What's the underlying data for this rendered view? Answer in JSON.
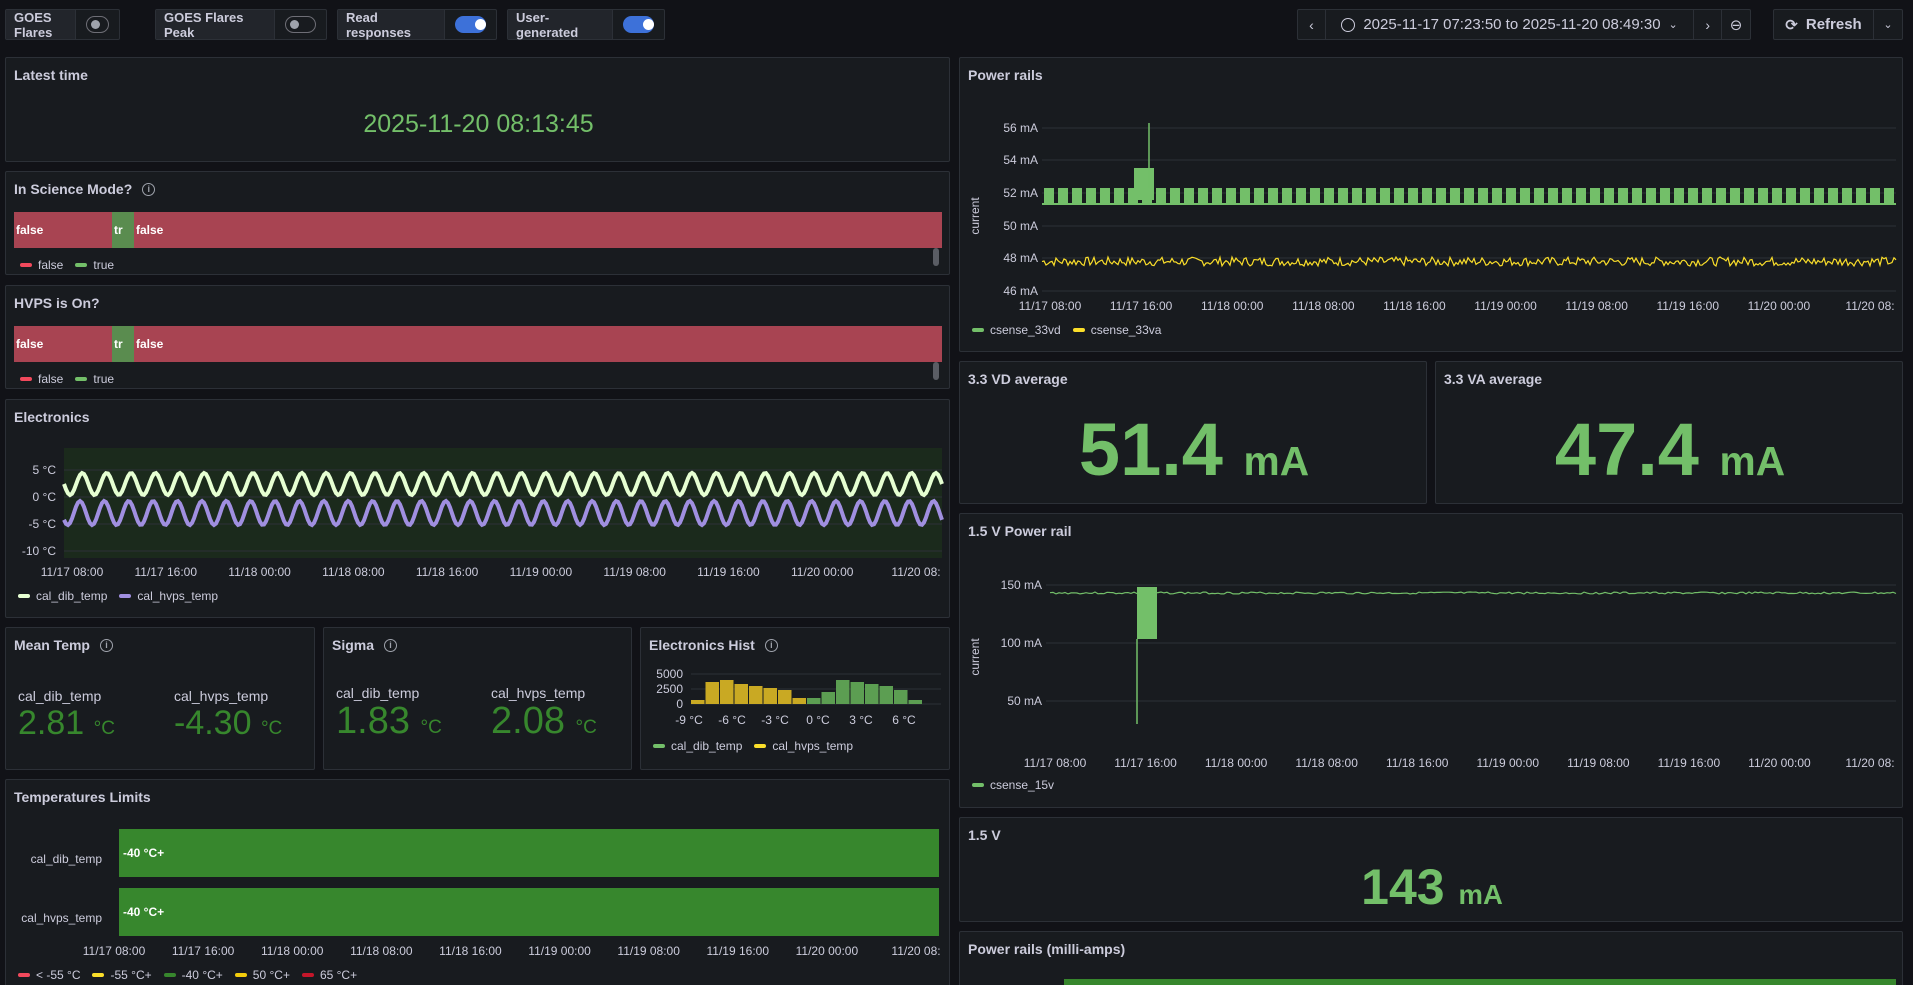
{
  "variables": [
    {
      "label": "GOES Flares",
      "on": false
    },
    {
      "label": "GOES Flares Peak",
      "on": false
    },
    {
      "label": "Read responses",
      "on": true
    },
    {
      "label": "User-generated",
      "on": true
    }
  ],
  "timepicker": {
    "range": "2025-11-17 07:23:50 to 2025-11-20 08:49:30",
    "refresh_label": "Refresh"
  },
  "x_ticks": [
    "11/17 08:00",
    "11/17 16:00",
    "11/18 00:00",
    "11/18 08:00",
    "11/18 16:00",
    "11/19 00:00",
    "11/19 08:00",
    "11/19 16:00",
    "11/20 00:00",
    "11/20 08:"
  ],
  "latest_time": {
    "title": "Latest time",
    "value": "2025-11-20 08:13:45"
  },
  "science_mode": {
    "title": "In Science Mode?",
    "states": [
      "false",
      "tr",
      "false"
    ],
    "legend": [
      "false",
      "true"
    ]
  },
  "hvps_on": {
    "title": "HVPS is On?",
    "states": [
      "false",
      "tr",
      "false"
    ],
    "legend": [
      "false",
      "true"
    ]
  },
  "electronics": {
    "title": "Electronics",
    "y_ticks": [
      "5 °C",
      "0 °C",
      "-5 °C",
      "-10 °C"
    ],
    "legend": [
      "cal_dib_temp",
      "cal_hvps_temp"
    ]
  },
  "mean_temp": {
    "title": "Mean Temp",
    "items": [
      {
        "name": "cal_dib_temp",
        "value": "2.81",
        "unit": "°C"
      },
      {
        "name": "cal_hvps_temp",
        "value": "-4.30",
        "unit": "°C"
      }
    ]
  },
  "sigma": {
    "title": "Sigma",
    "items": [
      {
        "name": "cal_dib_temp",
        "value": "1.83",
        "unit": "°C"
      },
      {
        "name": "cal_hvps_temp",
        "value": "2.08",
        "unit": "°C"
      }
    ]
  },
  "hist": {
    "title": "Electronics Hist",
    "y_ticks": [
      "5000",
      "2500",
      "0"
    ],
    "x_ticks": [
      "-9 °C",
      "-6 °C",
      "-3 °C",
      "0 °C",
      "3 °C",
      "6 °C"
    ],
    "legend": [
      "cal_dib_temp",
      "cal_hvps_temp"
    ]
  },
  "temp_limits": {
    "title": "Temperatures Limits",
    "rows": [
      {
        "name": "cal_dib_temp",
        "state": "-40 °C+"
      },
      {
        "name": "cal_hvps_temp",
        "state": "-40 °C+"
      }
    ],
    "legend": [
      "< -55 °C",
      "-55 °C+",
      "-40 °C+",
      "50 °C+",
      "65 °C+"
    ]
  },
  "power_rails": {
    "title": "Power rails",
    "y_label": "current",
    "y_ticks": [
      "56 mA",
      "54 mA",
      "52 mA",
      "50 mA",
      "48 mA",
      "46 mA"
    ],
    "legend": [
      "csense_33vd",
      "csense_33va"
    ]
  },
  "vd_avg": {
    "title": "3.3 VD average",
    "value": "51.4",
    "unit": "mA"
  },
  "va_avg": {
    "title": "3.3 VA average",
    "value": "47.4",
    "unit": "mA"
  },
  "rail15": {
    "title": "1.5 V Power rail",
    "y_label": "current",
    "y_ticks": [
      "150 mA",
      "100 mA",
      "50 mA"
    ],
    "legend": [
      "csense_15v"
    ]
  },
  "v15": {
    "title": "1.5 V",
    "value": "143",
    "unit": "mA"
  },
  "rails_ma": {
    "title": "Power rails (milli-amps)"
  },
  "colors": {
    "green": "#73bf69",
    "dark_green": "#37872d",
    "red": "#a84452",
    "yellow": "#fade2a",
    "purple": "#a08fe0",
    "pale_green": "#e6ffd2",
    "blue": "#3d71d9"
  }
}
